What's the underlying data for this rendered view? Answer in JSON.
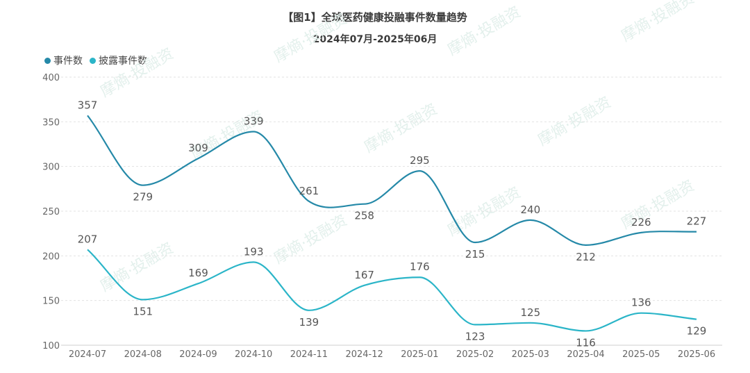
{
  "chart_data": {
    "type": "line",
    "title": "【图1】全球医药健康投融事件数量趋势",
    "subtitle": "2024年07月-2025年06月",
    "categories": [
      "2024-07",
      "2024-08",
      "2024-09",
      "2024-10",
      "2024-11",
      "2024-12",
      "2025-01",
      "2025-02",
      "2025-03",
      "2025-04",
      "2025-05",
      "2025-06"
    ],
    "series": [
      {
        "name": "事件数",
        "color": "#2589a8",
        "values": [
          357,
          279,
          309,
          339,
          261,
          258,
          295,
          215,
          240,
          212,
          226,
          227
        ]
      },
      {
        "name": "披露事件数",
        "color": "#2bb5c8",
        "values": [
          207,
          151,
          169,
          193,
          139,
          167,
          176,
          123,
          125,
          116,
          136,
          129
        ]
      }
    ],
    "yticks": [
      100,
      150,
      200,
      250,
      300,
      350,
      400
    ],
    "ylim": [
      100,
      400
    ],
    "grid": true,
    "legend": "top-left"
  },
  "watermark": "摩熵·投融资"
}
